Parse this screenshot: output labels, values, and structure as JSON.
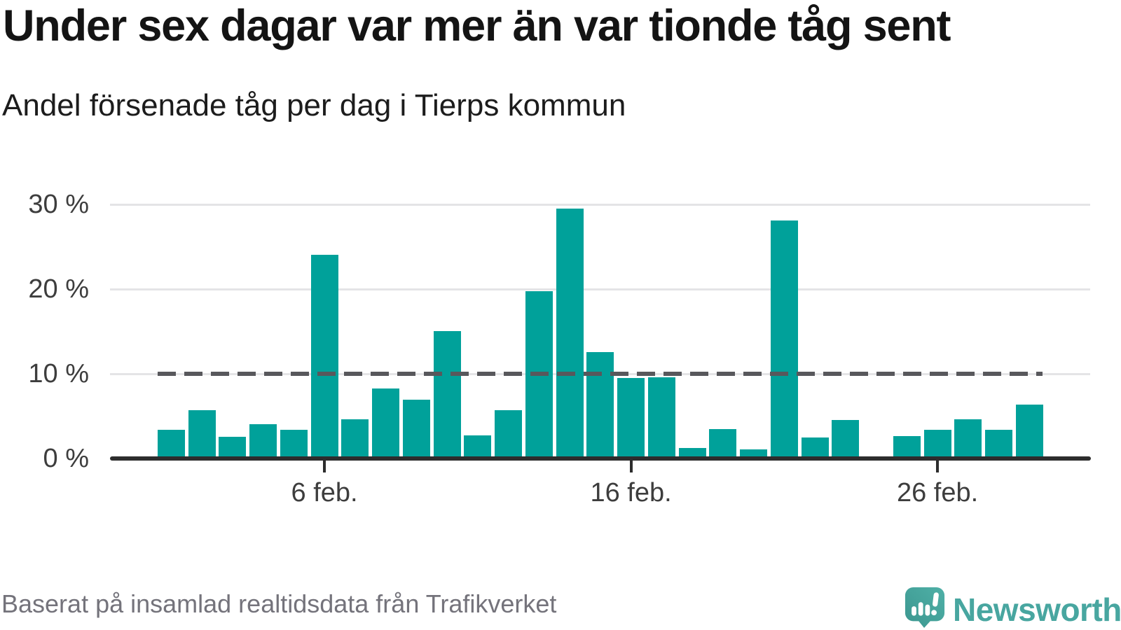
{
  "header": {
    "title": "Under sex dagar var mer än var tionde tåg sent",
    "subtitle": "Andel försenade tåg per dag i Tierps kommun"
  },
  "chart_data": {
    "type": "bar",
    "title": "Under sex dagar var mer än var tionde tåg sent",
    "subtitle": "Andel försenade tåg per dag i Tierps kommun",
    "unit": "percent delayed trains per day",
    "categories": [
      "1 feb.",
      "2 feb.",
      "3 feb.",
      "4 feb.",
      "5 feb.",
      "6 feb.",
      "7 feb.",
      "8 feb.",
      "9 feb.",
      "10 feb.",
      "11 feb.",
      "12 feb.",
      "13 feb.",
      "14 feb.",
      "15 feb.",
      "16 feb.",
      "17 feb.",
      "18 feb.",
      "19 feb.",
      "20 feb.",
      "21 feb.",
      "22 feb.",
      "23 feb.",
      "24 feb.",
      "25 feb.",
      "26 feb.",
      "27 feb.",
      "28 feb.",
      "29 feb."
    ],
    "values": [
      3.2,
      5.5,
      2.4,
      3.9,
      3.2,
      23.9,
      4.5,
      8.1,
      6.8,
      14.9,
      2.6,
      5.5,
      19.6,
      29.3,
      12.4,
      9.3,
      9.4,
      1.1,
      3.3,
      0.9,
      27.9,
      2.3,
      4.4,
      null,
      2.5,
      3.2,
      4.5,
      3.2,
      6.2
    ],
    "bar_color": "#00a19a",
    "ylim": [
      0,
      32
    ],
    "yticks": [
      {
        "value": 0,
        "label": "0 %"
      },
      {
        "value": 10,
        "label": "10 %"
      },
      {
        "value": 20,
        "label": "20 %"
      },
      {
        "value": 30,
        "label": "30 %"
      }
    ],
    "xticks": [
      {
        "index": 5,
        "label": "6 feb."
      },
      {
        "index": 15,
        "label": "16 feb."
      },
      {
        "index": 25,
        "label": "26 feb."
      }
    ],
    "reference_line": {
      "value": 10,
      "style": "dashed",
      "color": "#58585c"
    },
    "grid": "horizontal",
    "legend": "none"
  },
  "footer": {
    "source": "Baserat på insamlad realtidsdata från Trafikverket"
  },
  "logo": {
    "brand": "Newsworthy",
    "icon": "newsworthy-speech-bubble-bar-chart-icon",
    "word_color": "#48a6a0",
    "icon_color_top": "#4fb0a7",
    "icon_color_bottom": "#3b968f"
  },
  "colors": {
    "background": "#ffffff",
    "bar": "#00a19a",
    "gridline": "#e4e4e6",
    "axis": "#2d2d2d",
    "axis_label": "#3d3d3d",
    "reference_line": "#58585c",
    "title": "#141414",
    "source_text": "#74737b"
  }
}
